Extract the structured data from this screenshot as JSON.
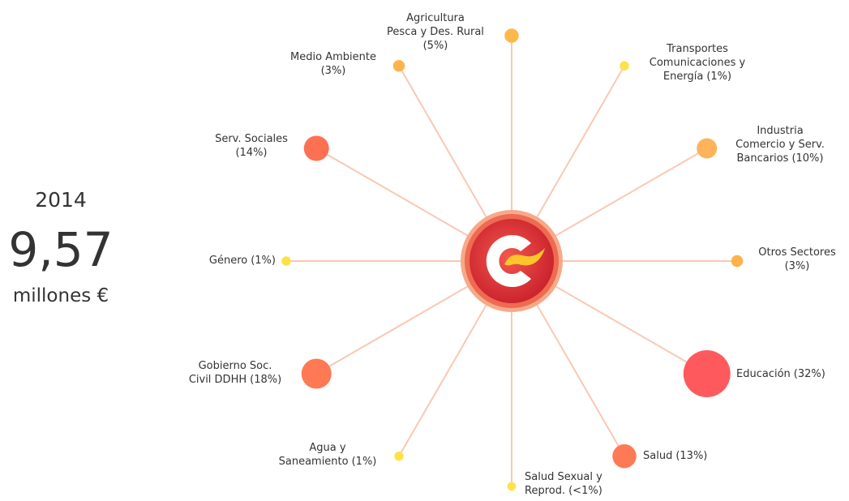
{
  "summary": {
    "year": "2014",
    "amount": "9,57",
    "unit": "millones €"
  },
  "chart_data": {
    "type": "radial-bubble",
    "categories": [
      "Agricultura\nPesca y Des. Rural",
      "Transportes\nComunicaciones y\nEnergía",
      "Industria\nComercio y Serv.\nBancarios",
      "Otros Sectores",
      "Educación",
      "Salud",
      "Salud Sexual y\nReprod.",
      "Agua y\nSaneamiento",
      "Gobierno Soc.\nCivil DDHH",
      "Género",
      "Serv. Sociales",
      "Medio Ambiente"
    ],
    "values": [
      5,
      1,
      10,
      3,
      32,
      13,
      0.5,
      1,
      18,
      1,
      14,
      3
    ],
    "value_labels": [
      "(5%)",
      "(1%)",
      "(10%)",
      "(3%)",
      "(32%)",
      "(13%)",
      "(<1%)",
      "(1%)",
      "(18%)",
      "(1%)",
      "(14%)",
      "(3%)"
    ],
    "colors": [
      "#fdb84c",
      "#fde24a",
      "#fdb35a",
      "#fdb24a",
      "#fe5a5e",
      "#fd7a55",
      "#fde24c",
      "#fde24c",
      "#fd7a55",
      "#fde14a",
      "#fd7052",
      "#fdb44d"
    ]
  }
}
